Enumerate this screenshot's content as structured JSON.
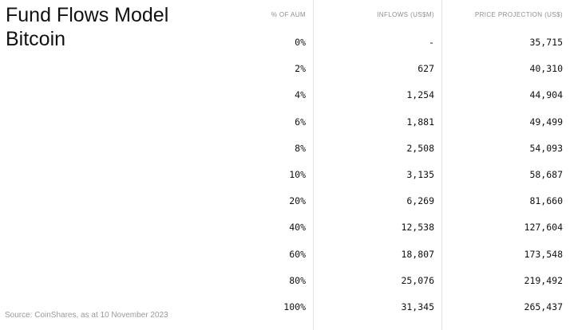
{
  "page": {
    "title_line1": "Fund Flows Model",
    "title_line2": "Bitcoin",
    "source": "Source: CoinShares, as at 10 November 2023"
  },
  "chart_data": {
    "type": "table",
    "title": "Fund Flows Model Bitcoin",
    "columns": [
      "% OF AUM",
      "INFLOWS (US$M)",
      "PRICE PROJECTION (US$)"
    ],
    "rows": [
      [
        "0%",
        "-",
        "35,715"
      ],
      [
        "2%",
        "627",
        "40,310"
      ],
      [
        "4%",
        "1,254",
        "44,904"
      ],
      [
        "6%",
        "1,881",
        "49,499"
      ],
      [
        "8%",
        "2,508",
        "54,093"
      ],
      [
        "10%",
        "3,135",
        "58,687"
      ],
      [
        "20%",
        "6,269",
        "81,660"
      ],
      [
        "40%",
        "12,538",
        "127,604"
      ],
      [
        "60%",
        "18,807",
        "173,548"
      ],
      [
        "80%",
        "25,076",
        "219,492"
      ],
      [
        "100%",
        "31,345",
        "265,437"
      ]
    ]
  }
}
